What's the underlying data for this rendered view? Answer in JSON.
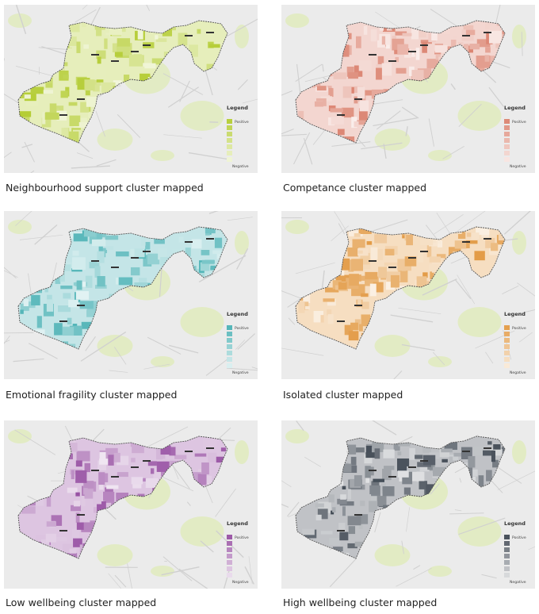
{
  "panels": [
    {
      "id": "neighbourhood-support",
      "caption": "Neighbourhood support cluster mapped",
      "color": "#b8cf3e",
      "legend_title": "Legend",
      "legend_positive": "Positive",
      "legend_negative": "Negative"
    },
    {
      "id": "competance",
      "caption": "Competance cluster mapped",
      "color": "#dd8a78",
      "legend_title": "Legend",
      "legend_positive": "Positive",
      "legend_negative": "Negative"
    },
    {
      "id": "emotional-fragility",
      "caption": "Emotional fragility cluster mapped",
      "color": "#55b6b9",
      "legend_title": "Legend",
      "legend_positive": "Positive",
      "legend_negative": "Negative"
    },
    {
      "id": "isolated",
      "caption": "Isolated cluster mapped",
      "color": "#e4a04f",
      "legend_title": "Legend",
      "legend_positive": "Positive",
      "legend_negative": "Negative"
    },
    {
      "id": "low-wellbeing",
      "caption": "Low wellbeing cluster mapped",
      "color": "#9d5aa8",
      "legend_title": "Legend",
      "legend_positive": "Positive",
      "legend_negative": "Negative"
    },
    {
      "id": "high-wellbeing",
      "caption": "High wellbeing cluster mapped",
      "color": "#4a525c",
      "legend_title": "Legend",
      "legend_positive": "Positive",
      "legend_negative": "Negative"
    }
  ],
  "colors": {
    "basemap": "#ebebeb",
    "roads": "#d0d0d0",
    "parks": "#e2ebc4",
    "boundary": "#555555"
  }
}
